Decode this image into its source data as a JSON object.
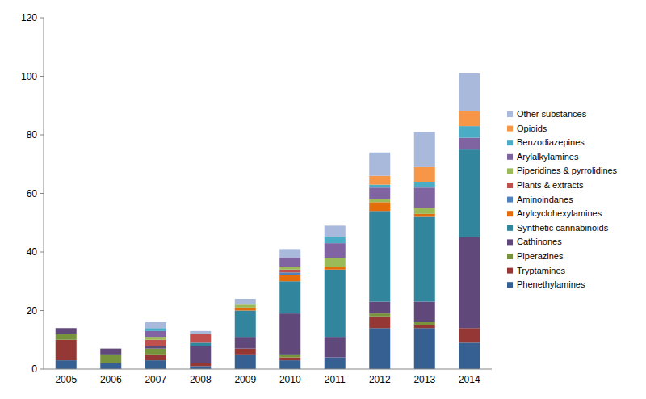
{
  "chart_data": {
    "type": "bar",
    "stacked": true,
    "legend": "right",
    "categories": [
      "2005",
      "2006",
      "2007",
      "2008",
      "2009",
      "2010",
      "2011",
      "2012",
      "2013",
      "2014"
    ],
    "ylim": [
      0,
      120
    ],
    "yticks": [
      0,
      20,
      40,
      60,
      80,
      100,
      120
    ],
    "series": [
      {
        "name": "Phenethylamines",
        "color": "#366092",
        "values": [
          3,
          2,
          3,
          1,
          5,
          3,
          4,
          14,
          14,
          9
        ]
      },
      {
        "name": "Tryptamines",
        "color": "#953735",
        "values": [
          7,
          0,
          2,
          1,
          2,
          1,
          0,
          4,
          1,
          5
        ]
      },
      {
        "name": "Piperazines",
        "color": "#77933c",
        "values": [
          2,
          3,
          2,
          0,
          0,
          1,
          0,
          1,
          1,
          0
        ]
      },
      {
        "name": "Cathinones",
        "color": "#60497a",
        "values": [
          2,
          2,
          1,
          6,
          4,
          14,
          7,
          4,
          7,
          31
        ]
      },
      {
        "name": "Synthetic cannabinoids",
        "color": "#31859c",
        "values": [
          0,
          0,
          0,
          1,
          9,
          11,
          23,
          31,
          29,
          30
        ]
      },
      {
        "name": "Arylcyclohexylamines",
        "color": "#e46c0a",
        "values": [
          0,
          0,
          0,
          0,
          1,
          2,
          1,
          3,
          1,
          0
        ]
      },
      {
        "name": "Aminoindanes",
        "color": "#4f81bd",
        "values": [
          0,
          0,
          0,
          0,
          0,
          1,
          0,
          0,
          0,
          0
        ]
      },
      {
        "name": "Plants & extracts",
        "color": "#c0504d",
        "values": [
          0,
          0,
          2,
          3,
          0,
          1,
          0,
          0,
          0,
          0
        ]
      },
      {
        "name": "Piperidines & pyrrolidines",
        "color": "#9bbb59",
        "values": [
          0,
          0,
          1,
          0,
          1,
          1,
          3,
          1,
          2,
          0
        ]
      },
      {
        "name": "Arylalkylamines",
        "color": "#8064a2",
        "values": [
          0,
          0,
          2,
          0,
          0,
          3,
          5,
          4,
          7,
          4
        ]
      },
      {
        "name": "Benzodiazepines",
        "color": "#4bacc6",
        "values": [
          0,
          0,
          1,
          0,
          0,
          0,
          2,
          1,
          2,
          4
        ]
      },
      {
        "name": "Opioids",
        "color": "#f79646",
        "values": [
          0,
          0,
          0,
          0,
          0,
          0,
          0,
          3,
          5,
          5
        ]
      },
      {
        "name": "Other substances",
        "color": "#a9b9dc",
        "values": [
          0,
          0,
          2,
          1,
          2,
          3,
          4,
          8,
          12,
          13
        ]
      }
    ]
  }
}
